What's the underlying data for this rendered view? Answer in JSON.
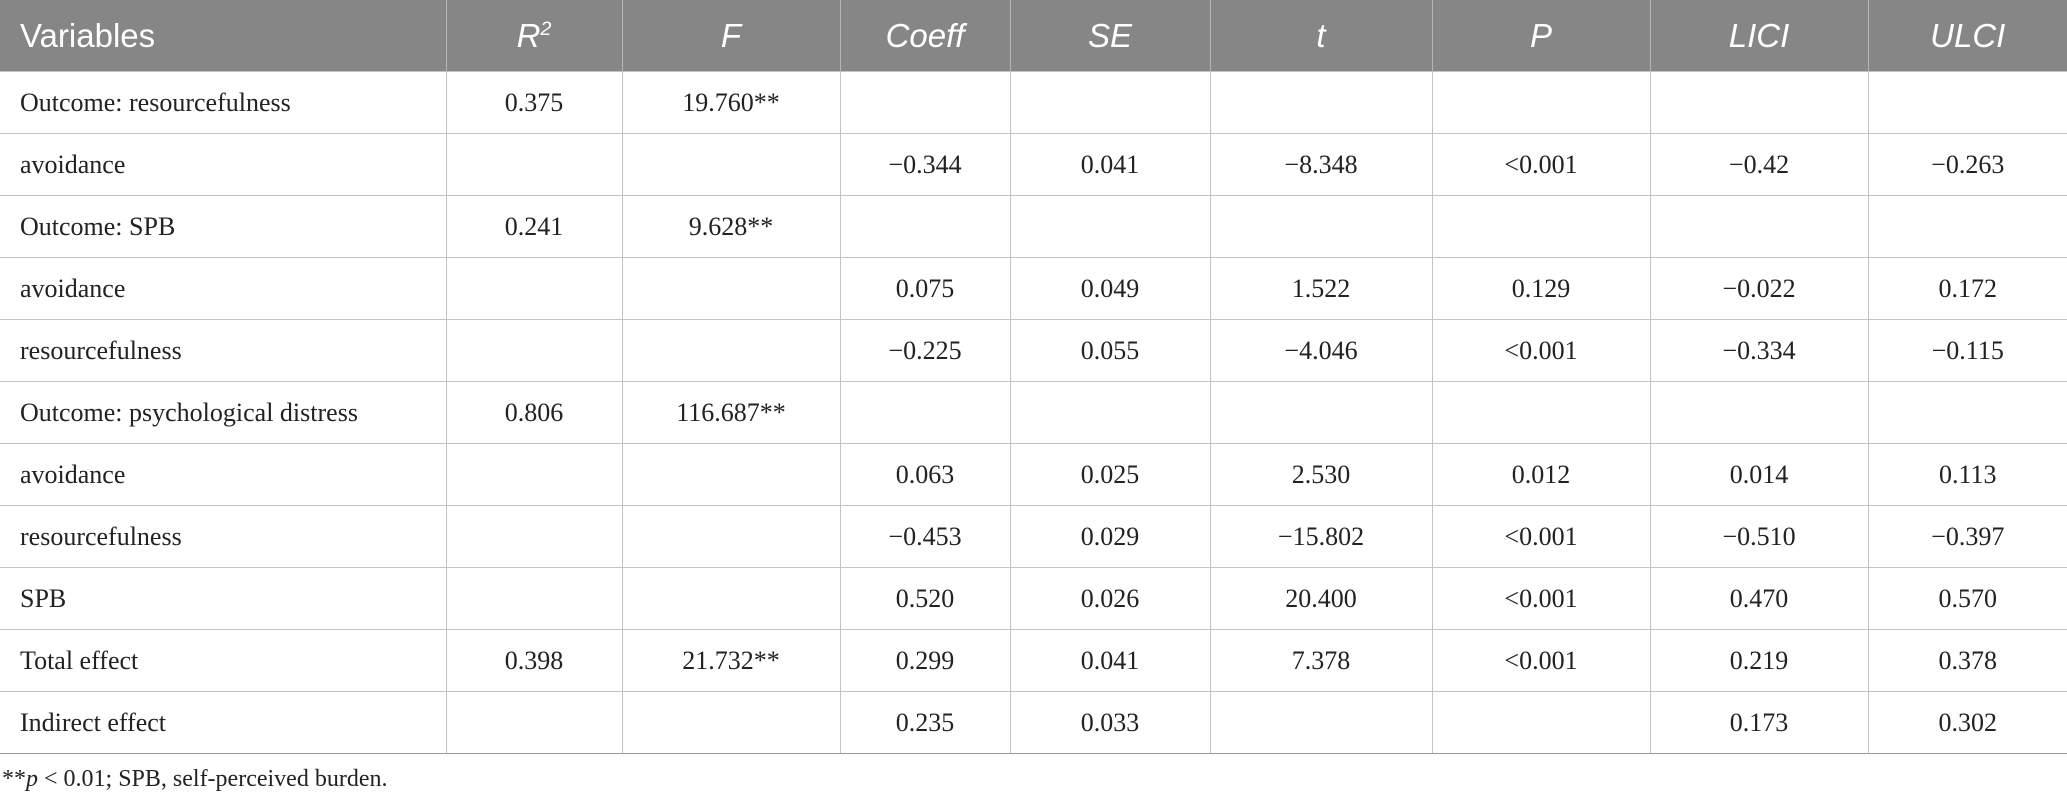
{
  "table": {
    "headers": [
      {
        "text": "Variables",
        "italic": false
      },
      {
        "text": "R",
        "sup": "2",
        "italic": true
      },
      {
        "text": "F",
        "italic": true
      },
      {
        "text": "Coeff",
        "italic": true
      },
      {
        "text": "SE",
        "italic": true
      },
      {
        "text": "t",
        "italic": true
      },
      {
        "text": "P",
        "italic": true
      },
      {
        "text": "LICI",
        "italic": true
      },
      {
        "text": "ULCI",
        "italic": true
      }
    ],
    "rows": [
      [
        "Outcome: resourcefulness",
        "0.375",
        "19.760**",
        "",
        "",
        "",
        "",
        "",
        ""
      ],
      [
        "avoidance",
        "",
        "",
        "−0.344",
        "0.041",
        "−8.348",
        "<0.001",
        "−0.42",
        "−0.263"
      ],
      [
        "Outcome: SPB",
        "0.241",
        "9.628**",
        "",
        "",
        "",
        "",
        "",
        ""
      ],
      [
        "avoidance",
        "",
        "",
        "0.075",
        "0.049",
        "1.522",
        "0.129",
        "−0.022",
        "0.172"
      ],
      [
        "resourcefulness",
        "",
        "",
        "−0.225",
        "0.055",
        "−4.046",
        "<0.001",
        "−0.334",
        "−0.115"
      ],
      [
        "Outcome: psychological distress",
        "0.806",
        "116.687**",
        "",
        "",
        "",
        "",
        "",
        ""
      ],
      [
        "avoidance",
        "",
        "",
        "0.063",
        "0.025",
        "2.530",
        "0.012",
        "0.014",
        "0.113"
      ],
      [
        "resourcefulness",
        "",
        "",
        "−0.453",
        "0.029",
        "−15.802",
        "<0.001",
        "−0.510",
        "−0.397"
      ],
      [
        "SPB",
        "",
        "",
        "0.520",
        "0.026",
        "20.400",
        "<0.001",
        "0.470",
        "0.570"
      ],
      [
        "Total effect",
        "0.398",
        "21.732**",
        "0.299",
        "0.041",
        "7.378",
        "<0.001",
        "0.219",
        "0.378"
      ],
      [
        "Indirect effect",
        "",
        "",
        "0.235",
        "0.033",
        "",
        "",
        "0.173",
        "0.302"
      ]
    ]
  },
  "footnote": {
    "stars": "**",
    "p": "p",
    "rest": " < 0.01; SPB, self-perceived burden."
  }
}
